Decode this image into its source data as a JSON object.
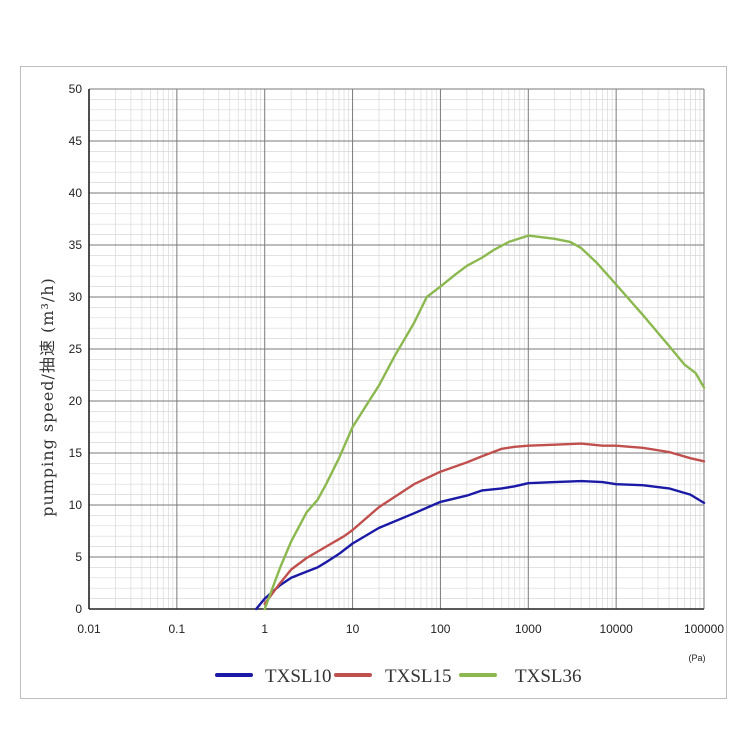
{
  "chart_data": {
    "type": "line",
    "xscale": "log",
    "xlim": [
      0.01,
      100000
    ],
    "ylim": [
      0,
      50
    ],
    "xticks": [
      "0.01",
      "0.1",
      "1",
      "10",
      "100",
      "1000",
      "10000",
      "100000"
    ],
    "yticks": [
      "0",
      "5",
      "10",
      "15",
      "20",
      "25",
      "30",
      "35",
      "40",
      "45",
      "50"
    ],
    "x_unit": "(Pa)",
    "ylabel": "pumping  speed/抽速 (m³/h)",
    "grid": true,
    "legend_position": "bottom",
    "series": [
      {
        "name": "TXSL10",
        "color": "#1a1aa6",
        "points": [
          [
            0.8,
            0
          ],
          [
            1,
            1
          ],
          [
            1.5,
            2.3
          ],
          [
            2,
            3
          ],
          [
            3,
            3.6
          ],
          [
            4,
            4
          ],
          [
            5,
            4.5
          ],
          [
            7,
            5.3
          ],
          [
            10,
            6.3
          ],
          [
            20,
            7.8
          ],
          [
            50,
            9.2
          ],
          [
            100,
            10.3
          ],
          [
            200,
            10.9
          ],
          [
            300,
            11.4
          ],
          [
            500,
            11.6
          ],
          [
            700,
            11.8
          ],
          [
            1000,
            12.1
          ],
          [
            2000,
            12.2
          ],
          [
            4000,
            12.3
          ],
          [
            7000,
            12.2
          ],
          [
            10000,
            12
          ],
          [
            20000,
            11.9
          ],
          [
            40000,
            11.6
          ],
          [
            70000,
            11
          ],
          [
            100000,
            10.2
          ]
        ]
      },
      {
        "name": "TXSL15",
        "color": "#c0504d",
        "points": [
          [
            1,
            0.5
          ],
          [
            1.5,
            2.5
          ],
          [
            2,
            3.8
          ],
          [
            3,
            4.9
          ],
          [
            5,
            6
          ],
          [
            8,
            7
          ],
          [
            10,
            7.6
          ],
          [
            20,
            9.8
          ],
          [
            50,
            12
          ],
          [
            100,
            13.2
          ],
          [
            200,
            14.1
          ],
          [
            300,
            14.7
          ],
          [
            500,
            15.4
          ],
          [
            700,
            15.6
          ],
          [
            1000,
            15.7
          ],
          [
            2000,
            15.8
          ],
          [
            4000,
            15.9
          ],
          [
            7000,
            15.7
          ],
          [
            10000,
            15.7
          ],
          [
            20000,
            15.5
          ],
          [
            40000,
            15.1
          ],
          [
            70000,
            14.5
          ],
          [
            100000,
            14.2
          ]
        ]
      },
      {
        "name": "TXSL36",
        "color": "#8bb84f",
        "points": [
          [
            1,
            0
          ],
          [
            1.5,
            4
          ],
          [
            2,
            6.5
          ],
          [
            3,
            9.3
          ],
          [
            4,
            10.5
          ],
          [
            5,
            12
          ],
          [
            7,
            14.5
          ],
          [
            10,
            17.5
          ],
          [
            20,
            21.5
          ],
          [
            30,
            24.3
          ],
          [
            50,
            27.5
          ],
          [
            70,
            30
          ],
          [
            100,
            31
          ],
          [
            150,
            32.2
          ],
          [
            200,
            33
          ],
          [
            300,
            33.8
          ],
          [
            400,
            34.5
          ],
          [
            600,
            35.3
          ],
          [
            1000,
            35.9
          ],
          [
            2000,
            35.6
          ],
          [
            3000,
            35.3
          ],
          [
            4000,
            34.7
          ],
          [
            6000,
            33.3
          ],
          [
            10000,
            31.2
          ],
          [
            20000,
            28.3
          ],
          [
            40000,
            25.3
          ],
          [
            60000,
            23.5
          ],
          [
            80000,
            22.7
          ],
          [
            100000,
            21.3
          ]
        ]
      }
    ]
  }
}
